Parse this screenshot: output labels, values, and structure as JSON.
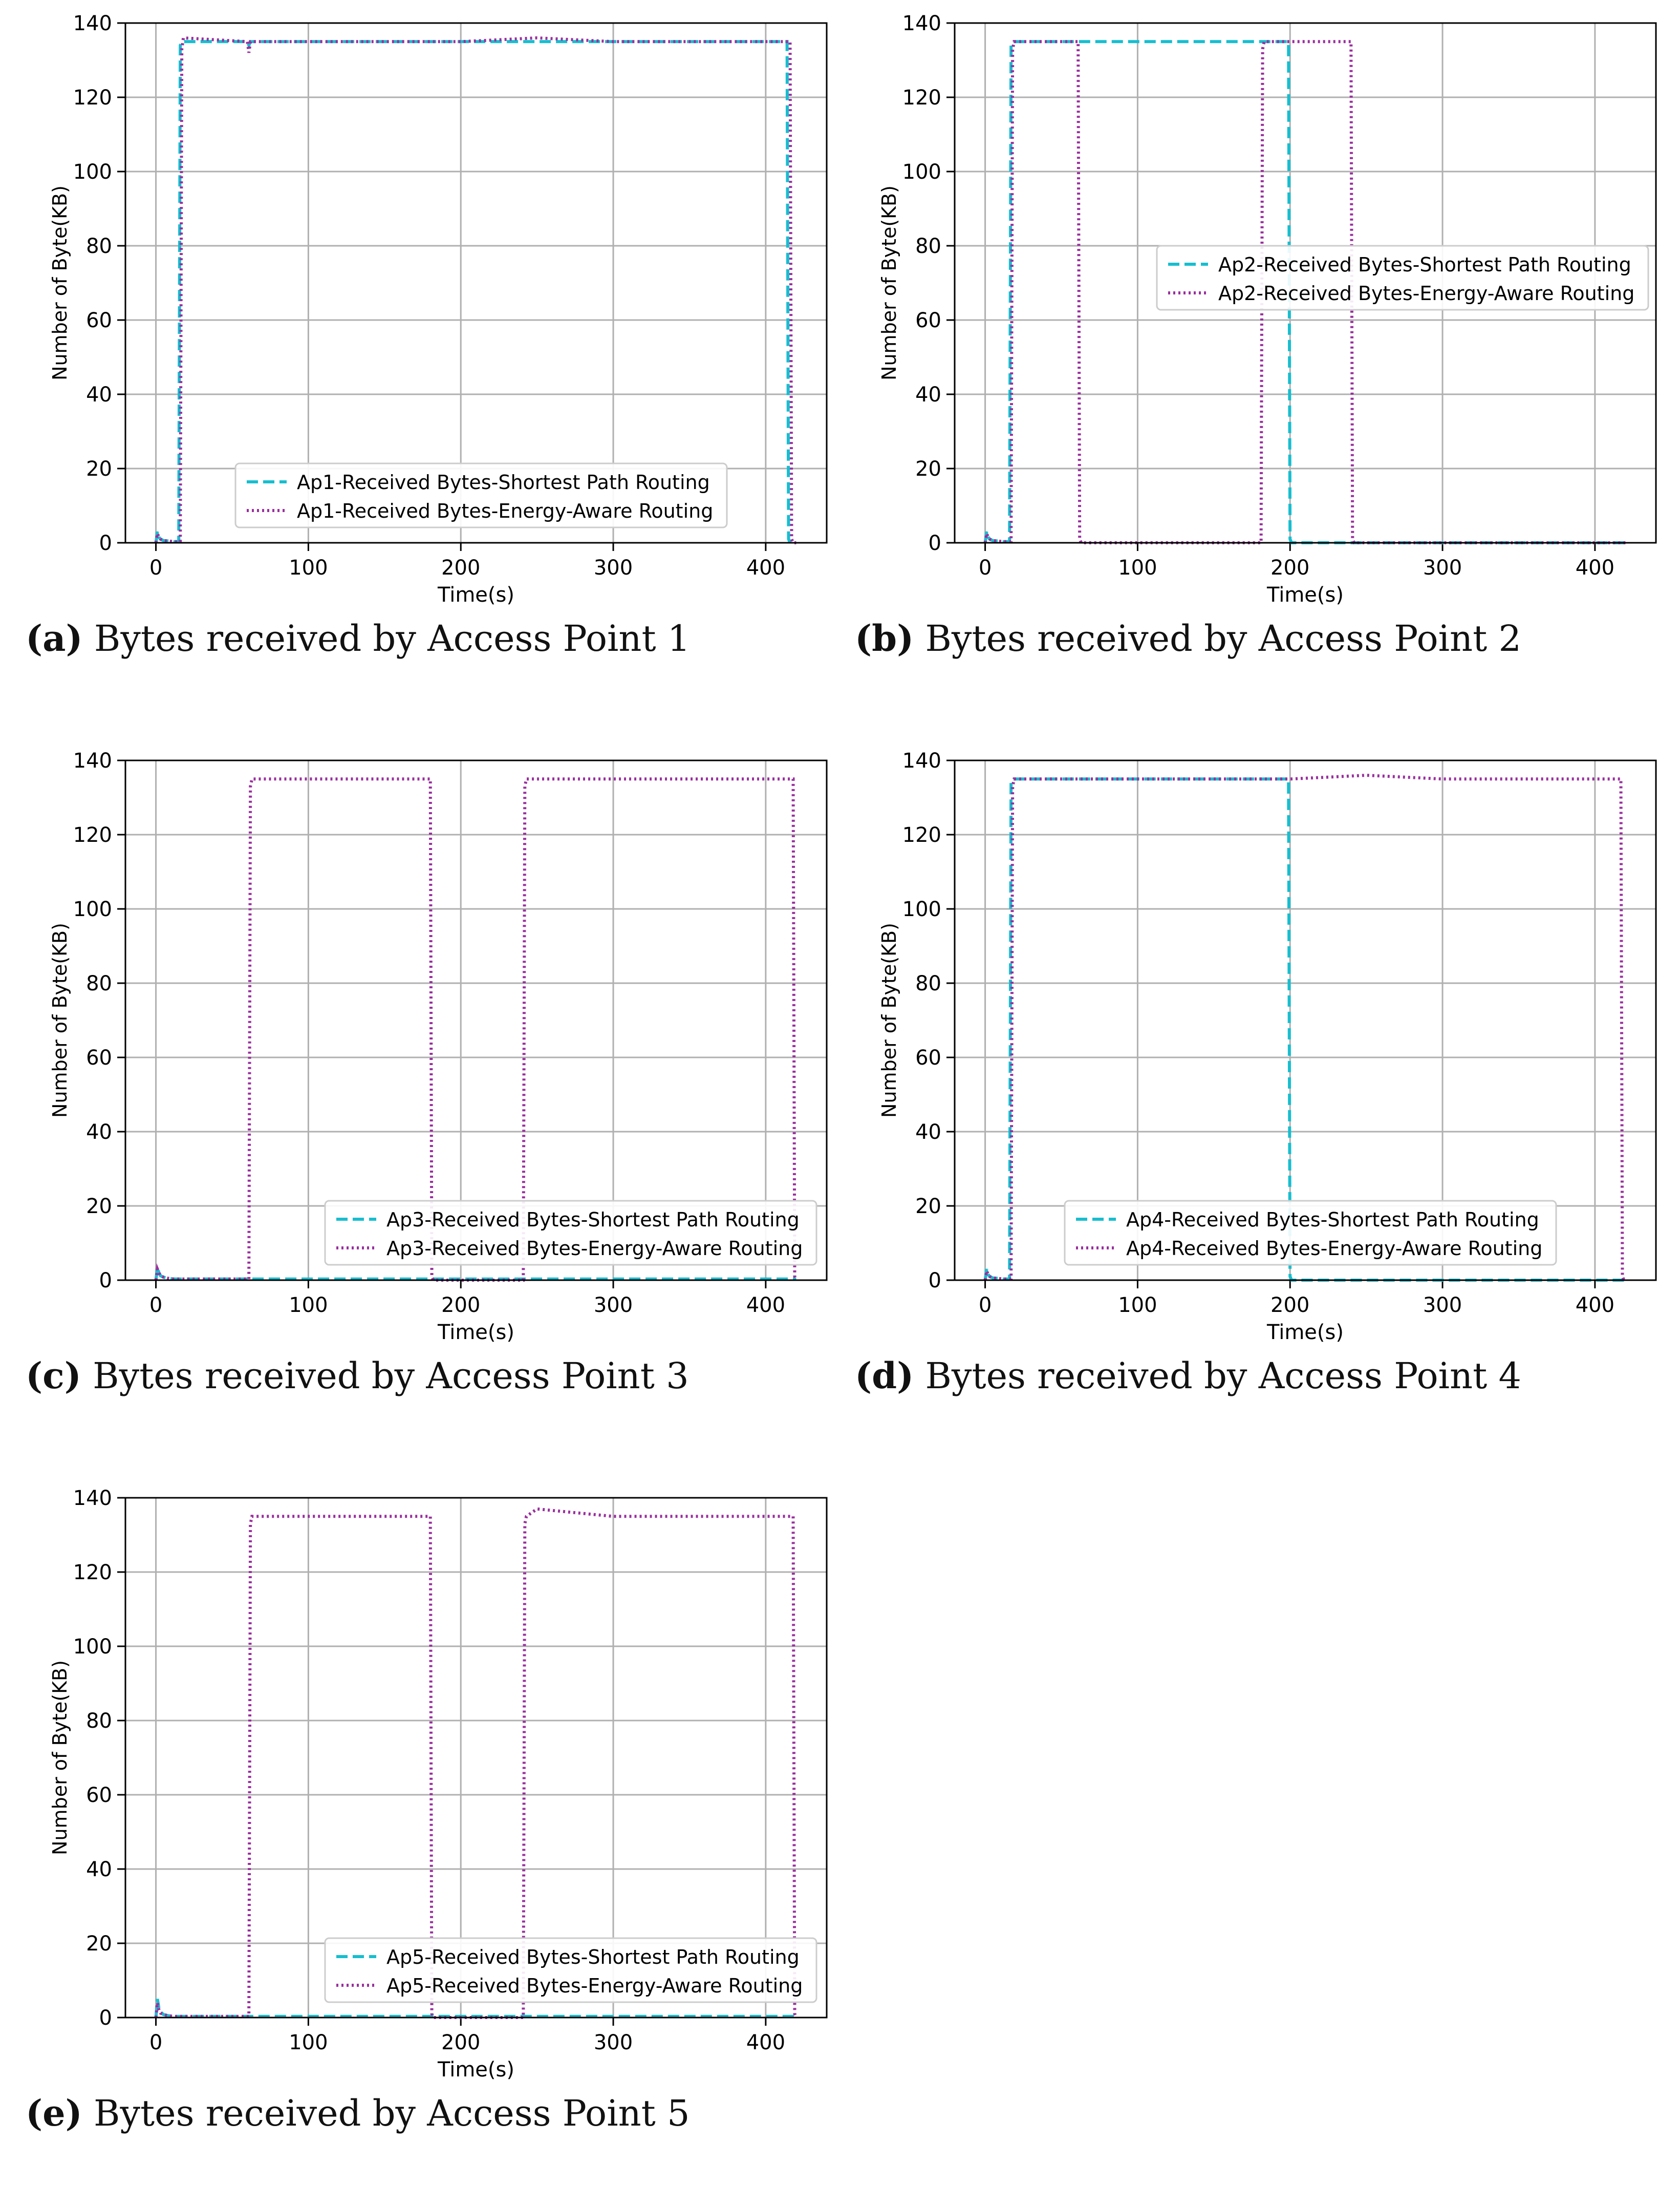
{
  "chart_data": [
    {
      "type": "line",
      "panel_label": "(a)",
      "caption": "Bytes received by Access Point 1",
      "xlabel": "Time(s)",
      "ylabel": "Number of Byte(KB)",
      "xlim": [
        -20,
        440
      ],
      "ylim": [
        0,
        140
      ],
      "xticks": [
        0,
        100,
        200,
        300,
        400
      ],
      "yticks": [
        0,
        20,
        40,
        60,
        80,
        100,
        120,
        140
      ],
      "grid": true,
      "legend_position": "lower-center",
      "series": [
        {
          "name": "Ap1-Received Bytes-Shortest Path Routing",
          "style": "dashed",
          "color": "#17becf",
          "x": [
            0,
            1,
            2,
            3,
            5,
            8,
            12,
            15,
            16,
            17,
            60,
            61,
            62,
            120,
            200,
            250,
            300,
            350,
            414,
            415,
            416,
            418
          ],
          "y": [
            0,
            3,
            1.5,
            1,
            0.6,
            0.5,
            0.3,
            0.3,
            134,
            135,
            135,
            134,
            135,
            135,
            135,
            135,
            135,
            135,
            135,
            1,
            0,
            0
          ]
        },
        {
          "name": "Ap1-Received Bytes-Energy-Aware Routing",
          "style": "dotted",
          "color": "#9a2f9e",
          "x": [
            0,
            1,
            2,
            3,
            5,
            8,
            12,
            16,
            17,
            18,
            60,
            61,
            62,
            120,
            200,
            250,
            300,
            350,
            416,
            417,
            418,
            420
          ],
          "y": [
            0,
            2.5,
            1.5,
            1,
            0.6,
            0.5,
            0.3,
            0.3,
            133,
            136,
            135,
            132,
            135,
            135,
            135,
            136,
            135,
            135,
            135,
            1,
            0,
            0
          ]
        }
      ]
    },
    {
      "type": "line",
      "panel_label": "(b)",
      "caption": "Bytes received by Access Point 2",
      "xlabel": "Time(s)",
      "ylabel": "Number of Byte(KB)",
      "xlim": [
        -20,
        440
      ],
      "ylim": [
        0,
        140
      ],
      "xticks": [
        0,
        100,
        200,
        300,
        400
      ],
      "yticks": [
        0,
        20,
        40,
        60,
        80,
        100,
        120,
        140
      ],
      "grid": true,
      "legend_position": "center-right",
      "series": [
        {
          "name": "Ap2-Received Bytes-Shortest Path Routing",
          "style": "dashed",
          "color": "#17becf",
          "x": [
            0,
            1,
            2,
            3,
            5,
            8,
            12,
            16,
            17,
            18,
            60,
            120,
            180,
            199,
            200,
            201,
            300,
            420
          ],
          "y": [
            0,
            3,
            1.5,
            1,
            0.6,
            0.5,
            0.3,
            0.3,
            134,
            135,
            135,
            135,
            135,
            135,
            1,
            0,
            0,
            0
          ]
        },
        {
          "name": "Ap2-Received Bytes-Energy-Aware Routing",
          "style": "dotted",
          "color": "#9a2f9e",
          "x": [
            0,
            1,
            2,
            3,
            5,
            8,
            12,
            17,
            18,
            19,
            61,
            62,
            63,
            120,
            181,
            182,
            183,
            240,
            241,
            242,
            300,
            420
          ],
          "y": [
            0,
            2.5,
            1.5,
            1,
            0.6,
            0.5,
            0.3,
            0.3,
            133,
            135,
            135,
            1,
            0,
            0,
            0,
            133,
            135,
            135,
            1,
            0,
            0,
            0
          ]
        }
      ]
    },
    {
      "type": "line",
      "panel_label": "(c)",
      "caption": "Bytes received by Access Point 3",
      "xlabel": "Time(s)",
      "ylabel": "Number of Byte(KB)",
      "xlim": [
        -20,
        440
      ],
      "ylim": [
        0,
        140
      ],
      "xticks": [
        0,
        100,
        200,
        300,
        400
      ],
      "yticks": [
        0,
        20,
        40,
        60,
        80,
        100,
        120,
        140
      ],
      "grid": true,
      "legend_position": "lower-right",
      "series": [
        {
          "name": "Ap3-Received Bytes-Shortest Path Routing",
          "style": "dashed",
          "color": "#17becf",
          "x": [
            0,
            1,
            2,
            3,
            5,
            8,
            12,
            20,
            60,
            120,
            200,
            300,
            420
          ],
          "y": [
            0,
            3.5,
            2,
            1.2,
            0.8,
            0.5,
            0.3,
            0.3,
            0.3,
            0.3,
            0.3,
            0.3,
            0.3
          ]
        },
        {
          "name": "Ap3-Received Bytes-Energy-Aware Routing",
          "style": "dotted",
          "color": "#9a2f9e",
          "x": [
            0,
            1,
            2,
            3,
            5,
            8,
            12,
            20,
            61,
            62,
            63,
            120,
            180,
            181,
            182,
            241,
            242,
            243,
            300,
            418,
            419,
            420
          ],
          "y": [
            0,
            3,
            2,
            1.2,
            0.8,
            0.5,
            0.3,
            0.3,
            0.3,
            133,
            135,
            135,
            135,
            1,
            0,
            0,
            133,
            135,
            135,
            135,
            1,
            0
          ]
        }
      ]
    },
    {
      "type": "line",
      "panel_label": "(d)",
      "caption": "Bytes received by Access Point 4",
      "xlabel": "Time(s)",
      "ylabel": "Number of Byte(KB)",
      "xlim": [
        -20,
        440
      ],
      "ylim": [
        0,
        140
      ],
      "xticks": [
        0,
        100,
        200,
        300,
        400
      ],
      "yticks": [
        0,
        20,
        40,
        60,
        80,
        100,
        120,
        140
      ],
      "grid": true,
      "legend_position": "lower-center",
      "series": [
        {
          "name": "Ap4-Received Bytes-Shortest Path Routing",
          "style": "dashed",
          "color": "#17becf",
          "x": [
            0,
            1,
            2,
            3,
            5,
            8,
            12,
            16,
            17,
            18,
            60,
            120,
            180,
            199,
            200,
            201,
            300,
            420
          ],
          "y": [
            0,
            3,
            1.5,
            1,
            0.6,
            0.5,
            0.3,
            0.3,
            134,
            135,
            135,
            135,
            135,
            135,
            1,
            0,
            0,
            0
          ]
        },
        {
          "name": "Ap4-Received Bytes-Energy-Aware Routing",
          "style": "dotted",
          "color": "#9a2f9e",
          "x": [
            0,
            1,
            2,
            3,
            5,
            8,
            12,
            17,
            18,
            19,
            60,
            120,
            200,
            250,
            300,
            350,
            417,
            418,
            419,
            420
          ],
          "y": [
            0,
            2.5,
            1.5,
            1,
            0.6,
            0.5,
            0.3,
            0.3,
            133,
            135,
            135,
            135,
            135,
            136,
            135,
            135,
            135,
            1,
            0,
            0
          ]
        }
      ]
    },
    {
      "type": "line",
      "panel_label": "(e)",
      "caption": "Bytes received by Access Point 5",
      "xlabel": "Time(s)",
      "ylabel": "Number of Byte(KB)",
      "xlim": [
        -20,
        440
      ],
      "ylim": [
        0,
        140
      ],
      "xticks": [
        0,
        100,
        200,
        300,
        400
      ],
      "yticks": [
        0,
        20,
        40,
        60,
        80,
        100,
        120,
        140
      ],
      "grid": true,
      "legend_position": "lower-right",
      "series": [
        {
          "name": "Ap5-Received Bytes-Shortest Path Routing",
          "style": "dashed",
          "color": "#17becf",
          "x": [
            0,
            1,
            2,
            3,
            5,
            8,
            12,
            20,
            60,
            120,
            200,
            300,
            420
          ],
          "y": [
            0,
            5,
            2.5,
            1.5,
            0.8,
            0.5,
            0.3,
            0.3,
            0.3,
            0.3,
            0.3,
            0.3,
            0.3
          ]
        },
        {
          "name": "Ap5-Received Bytes-Energy-Aware Routing",
          "style": "dotted",
          "color": "#9a2f9e",
          "x": [
            0,
            1,
            2,
            3,
            5,
            8,
            12,
            20,
            61,
            62,
            63,
            120,
            180,
            181,
            182,
            241,
            242,
            243,
            250,
            300,
            418,
            419,
            420
          ],
          "y": [
            0,
            4,
            2,
            1.2,
            0.8,
            0.5,
            0.3,
            0.3,
            0.3,
            133,
            135,
            135,
            135,
            1,
            0,
            0,
            133,
            135,
            137,
            135,
            135,
            1,
            0
          ]
        }
      ]
    }
  ]
}
